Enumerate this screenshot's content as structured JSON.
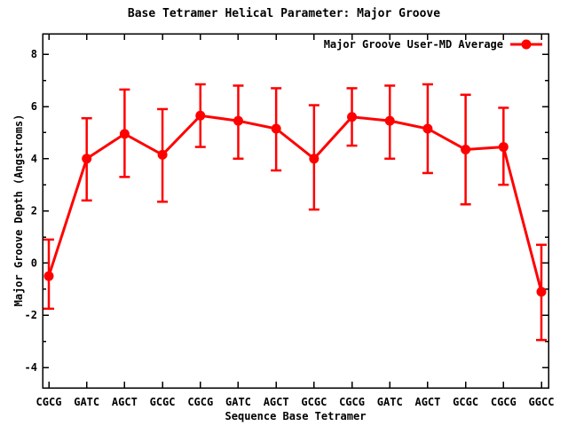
{
  "title": "Base Tetramer Helical Parameter: Major Groove",
  "legend": {
    "label": "Major Groove User-MD Average"
  },
  "colors": {
    "series": "#ff0000",
    "axis": "#000000",
    "background": "#ffffff"
  },
  "chart_data": {
    "type": "line",
    "title": "Base Tetramer Helical Parameter: Major Groove",
    "xlabel": "Sequence Base Tetramer",
    "ylabel": "Major Groove Depth (Angstroms)",
    "categories": [
      "CGCG",
      "GATC",
      "AGCT",
      "GCGC",
      "CGCG",
      "GATC",
      "AGCT",
      "GCGC",
      "CGCG",
      "GATC",
      "AGCT",
      "GCGC",
      "CGCG",
      "GGCC"
    ],
    "series": [
      {
        "name": "Major Groove User-MD Average",
        "color": "#ff0000",
        "marker": "filled-circle",
        "values": [
          -0.5,
          4.0,
          4.95,
          4.15,
          5.65,
          5.45,
          5.15,
          4.0,
          5.6,
          5.45,
          5.15,
          4.35,
          4.45,
          -1.1
        ],
        "err_high": [
          0.9,
          5.55,
          6.65,
          5.9,
          6.85,
          6.8,
          6.7,
          6.05,
          6.7,
          6.8,
          6.85,
          6.45,
          5.95,
          0.7
        ],
        "err_low": [
          -1.75,
          2.4,
          3.3,
          2.35,
          4.45,
          4.0,
          3.55,
          2.05,
          4.5,
          4.0,
          3.45,
          2.25,
          3.0,
          -2.95
        ]
      }
    ],
    "yticks": [
      -4,
      -2,
      0,
      2,
      4,
      6,
      8
    ],
    "yticks_minor": [
      -3,
      -1,
      1,
      3,
      5,
      7
    ],
    "ylim": [
      -4.78,
      8.79
    ],
    "grid": false,
    "legend_position": "top-right-inside",
    "error_bars": true
  }
}
